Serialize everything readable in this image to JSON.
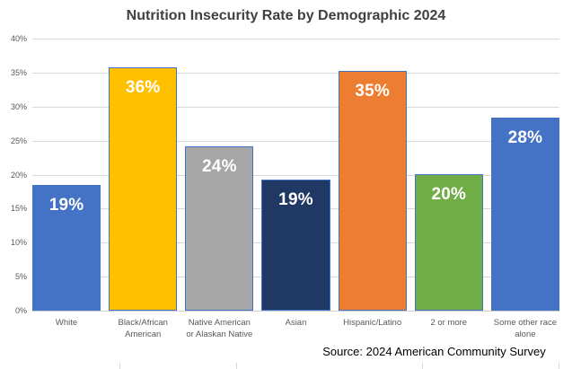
{
  "source_note": "Source: 2024 American Community Survey",
  "chart_data": {
    "type": "bar",
    "title": "Nutrition Insecurity Rate by Demographic 2024",
    "categories": [
      "White",
      "Black/African American",
      "Native American or Alaskan Native",
      "Asian",
      "Hispanic/Latino",
      "2 or more",
      "Some other race alone"
    ],
    "values": [
      18.5,
      35.8,
      24.2,
      19.3,
      35.2,
      20.1,
      28.4
    ],
    "data_labels": [
      "19%",
      "36%",
      "24%",
      "19%",
      "35%",
      "20%",
      "28%"
    ],
    "bar_colors": [
      "#4472C4",
      "#FFC000",
      "#A6A6A6",
      "#1F3864",
      "#ED7D31",
      "#70AD47",
      "#4472C4"
    ],
    "bar_border_color": "#4472C4",
    "xlabel": "",
    "ylabel": "",
    "ylim": [
      0,
      40
    ],
    "ytick_step": 5,
    "ytick_suffix": "%",
    "grid": true,
    "legend": "none",
    "annotations": [
      "Source: 2024 American Community Survey"
    ],
    "appearance": {
      "title_color": "#404040",
      "axis_label_color": "#595959",
      "gridline_color": "#D9D9D9",
      "data_label_color": "#FFFFFF",
      "source_color": "#000000",
      "background": "#FFFFFF"
    },
    "bottom_ticks_x": [
      133,
      263,
      470,
      622
    ]
  }
}
